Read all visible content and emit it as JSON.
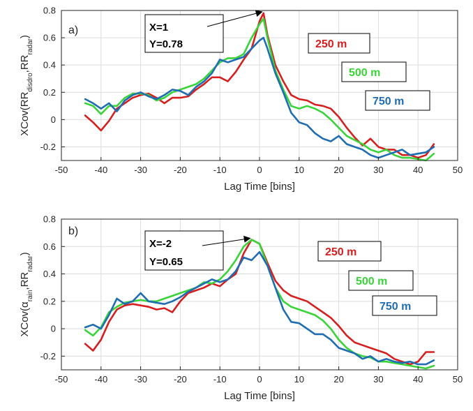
{
  "chart_data": [
    {
      "type": "line",
      "panel_label": "a)",
      "xlabel": "Lag Time [bins]",
      "ylabel": {
        "base": "XCov(RR",
        "sub1": "disdro",
        "mid": ",RR",
        "sub2": "radar",
        "end": ")"
      },
      "xlim": [
        -50,
        50
      ],
      "ylim": [
        -0.3,
        0.8
      ],
      "xticks": [
        -50,
        -40,
        -30,
        -20,
        -10,
        0,
        10,
        20,
        30,
        40,
        50
      ],
      "yticks": [
        -0.2,
        0,
        0.2,
        0.4,
        0.6,
        0.8
      ],
      "grid": true,
      "annotation": {
        "line1": "X=1",
        "line2": "Y=0.78",
        "x": 1,
        "y": 0.78
      },
      "series": [
        {
          "name": "250 m",
          "color": "#d62020",
          "x": [
            -44,
            -42,
            -40,
            -38,
            -36,
            -34,
            -32,
            -30,
            -28,
            -26,
            -24,
            -22,
            -20,
            -18,
            -16,
            -14,
            -12,
            -10,
            -8,
            -6,
            -4,
            -2,
            0,
            1,
            2,
            4,
            6,
            8,
            10,
            12,
            14,
            16,
            18,
            20,
            22,
            24,
            26,
            28,
            30,
            32,
            34,
            36,
            38,
            40,
            42,
            44
          ],
          "values": [
            0.03,
            -0.02,
            -0.08,
            -0.01,
            0.08,
            0.12,
            0.16,
            0.18,
            0.19,
            0.16,
            0.12,
            0.16,
            0.16,
            0.17,
            0.22,
            0.26,
            0.31,
            0.31,
            0.28,
            0.35,
            0.44,
            0.52,
            0.72,
            0.78,
            0.62,
            0.4,
            0.28,
            0.18,
            0.15,
            0.14,
            0.11,
            0.1,
            0.08,
            0.02,
            -0.06,
            -0.13,
            -0.19,
            -0.14,
            -0.2,
            -0.22,
            -0.22,
            -0.26,
            -0.26,
            -0.28,
            -0.26,
            -0.18
          ]
        },
        {
          "name": "500 m",
          "color": "#3ad43a",
          "x": [
            -44,
            -42,
            -40,
            -38,
            -36,
            -34,
            -32,
            -30,
            -28,
            -26,
            -24,
            -22,
            -20,
            -18,
            -16,
            -14,
            -12,
            -10,
            -8,
            -6,
            -4,
            -2,
            0,
            1,
            2,
            4,
            6,
            8,
            10,
            12,
            14,
            16,
            18,
            20,
            22,
            24,
            26,
            28,
            30,
            32,
            34,
            36,
            38,
            40,
            42,
            44
          ],
          "values": [
            0.12,
            0.1,
            0.04,
            0.1,
            0.1,
            0.16,
            0.19,
            0.19,
            0.18,
            0.14,
            0.16,
            0.2,
            0.22,
            0.24,
            0.26,
            0.3,
            0.36,
            0.42,
            0.45,
            0.45,
            0.48,
            0.6,
            0.7,
            0.74,
            0.6,
            0.36,
            0.22,
            0.1,
            0.08,
            0.1,
            0.08,
            0.05,
            0.0,
            -0.06,
            -0.12,
            -0.15,
            -0.18,
            -0.22,
            -0.24,
            -0.22,
            -0.26,
            -0.28,
            -0.28,
            -0.29,
            -0.3,
            -0.25
          ]
        },
        {
          "name": "750 m",
          "color": "#1f6db2",
          "x": [
            -44,
            -42,
            -40,
            -38,
            -36,
            -34,
            -32,
            -30,
            -28,
            -26,
            -24,
            -22,
            -20,
            -18,
            -16,
            -14,
            -12,
            -10,
            -8,
            -6,
            -4,
            -2,
            0,
            1,
            2,
            4,
            6,
            8,
            10,
            12,
            14,
            16,
            18,
            20,
            22,
            24,
            26,
            28,
            30,
            32,
            34,
            36,
            38,
            40,
            42,
            44
          ],
          "values": [
            0.15,
            0.12,
            0.08,
            0.12,
            0.06,
            0.14,
            0.18,
            0.2,
            0.17,
            0.15,
            0.18,
            0.22,
            0.21,
            0.18,
            0.24,
            0.28,
            0.34,
            0.44,
            0.42,
            0.44,
            0.46,
            0.52,
            0.58,
            0.6,
            0.52,
            0.34,
            0.2,
            0.05,
            -0.02,
            -0.04,
            -0.1,
            -0.14,
            -0.16,
            -0.12,
            -0.18,
            -0.2,
            -0.22,
            -0.26,
            -0.28,
            -0.26,
            -0.24,
            -0.22,
            -0.26,
            -0.25,
            -0.24,
            -0.2
          ]
        }
      ]
    },
    {
      "type": "line",
      "panel_label": "b)",
      "xlabel": "Lag Time [bins]",
      "ylabel": {
        "base": "XCov(α",
        "sub1": "rain",
        "mid": ",RR",
        "sub2": "radar",
        "end": ")"
      },
      "xlim": [
        -50,
        50
      ],
      "ylim": [
        -0.3,
        0.8
      ],
      "xticks": [
        -50,
        -40,
        -30,
        -20,
        -10,
        0,
        10,
        20,
        30,
        40,
        50
      ],
      "yticks": [
        -0.2,
        0,
        0.2,
        0.4,
        0.6,
        0.8
      ],
      "grid": true,
      "annotation": {
        "line1": "X=-2",
        "line2": "Y=0.65",
        "x": -2,
        "y": 0.65
      },
      "series": [
        {
          "name": "250 m",
          "color": "#d62020",
          "x": [
            -44,
            -42,
            -40,
            -38,
            -36,
            -34,
            -32,
            -30,
            -28,
            -26,
            -24,
            -22,
            -20,
            -18,
            -16,
            -14,
            -12,
            -10,
            -8,
            -6,
            -4,
            -2,
            0,
            2,
            4,
            6,
            8,
            10,
            12,
            14,
            16,
            18,
            20,
            22,
            24,
            26,
            28,
            30,
            32,
            34,
            36,
            38,
            40,
            42,
            44
          ],
          "values": [
            -0.11,
            -0.16,
            -0.08,
            0.05,
            0.14,
            0.17,
            0.18,
            0.17,
            0.16,
            0.14,
            0.15,
            0.12,
            0.2,
            0.26,
            0.28,
            0.3,
            0.33,
            0.31,
            0.36,
            0.4,
            0.55,
            0.65,
            0.62,
            0.48,
            0.35,
            0.28,
            0.24,
            0.22,
            0.2,
            0.16,
            0.12,
            0.08,
            0.02,
            -0.05,
            -0.1,
            -0.12,
            -0.14,
            -0.16,
            -0.18,
            -0.22,
            -0.24,
            -0.26,
            -0.24,
            -0.17,
            -0.17
          ]
        },
        {
          "name": "500 m",
          "color": "#3ad43a",
          "x": [
            -44,
            -42,
            -40,
            -38,
            -36,
            -34,
            -32,
            -30,
            -28,
            -26,
            -24,
            -22,
            -20,
            -18,
            -16,
            -14,
            -12,
            -10,
            -8,
            -6,
            -4,
            -2,
            0,
            2,
            4,
            6,
            8,
            10,
            12,
            14,
            16,
            18,
            20,
            22,
            24,
            26,
            28,
            30,
            32,
            34,
            36,
            38,
            40,
            42,
            44
          ],
          "values": [
            -0.01,
            -0.05,
            0.01,
            0.12,
            0.16,
            0.19,
            0.2,
            0.21,
            0.2,
            0.2,
            0.22,
            0.24,
            0.26,
            0.28,
            0.3,
            0.34,
            0.33,
            0.36,
            0.42,
            0.5,
            0.6,
            0.65,
            0.62,
            0.46,
            0.3,
            0.2,
            0.16,
            0.14,
            0.12,
            0.1,
            0.06,
            0.0,
            -0.08,
            -0.14,
            -0.18,
            -0.2,
            -0.21,
            -0.24,
            -0.24,
            -0.25,
            -0.26,
            -0.27,
            -0.28,
            -0.29,
            -0.27
          ]
        },
        {
          "name": "750 m",
          "color": "#1f6db2",
          "x": [
            -44,
            -42,
            -40,
            -38,
            -36,
            -34,
            -32,
            -30,
            -28,
            -26,
            -24,
            -22,
            -20,
            -18,
            -16,
            -14,
            -12,
            -10,
            -8,
            -6,
            -4,
            -2,
            0,
            2,
            4,
            6,
            8,
            10,
            12,
            14,
            16,
            18,
            20,
            22,
            24,
            26,
            28,
            30,
            32,
            34,
            36,
            38,
            40,
            42,
            44
          ],
          "values": [
            0.01,
            0.03,
            0.0,
            0.1,
            0.22,
            0.18,
            0.2,
            0.26,
            0.2,
            0.19,
            0.18,
            0.2,
            0.23,
            0.27,
            0.3,
            0.33,
            0.36,
            0.34,
            0.36,
            0.42,
            0.52,
            0.5,
            0.56,
            0.46,
            0.3,
            0.14,
            0.05,
            0.04,
            0.0,
            -0.04,
            -0.04,
            -0.08,
            -0.14,
            -0.16,
            -0.18,
            -0.22,
            -0.2,
            -0.24,
            -0.22,
            -0.24,
            -0.25,
            -0.24,
            -0.26,
            -0.26,
            -0.23
          ]
        }
      ]
    }
  ]
}
